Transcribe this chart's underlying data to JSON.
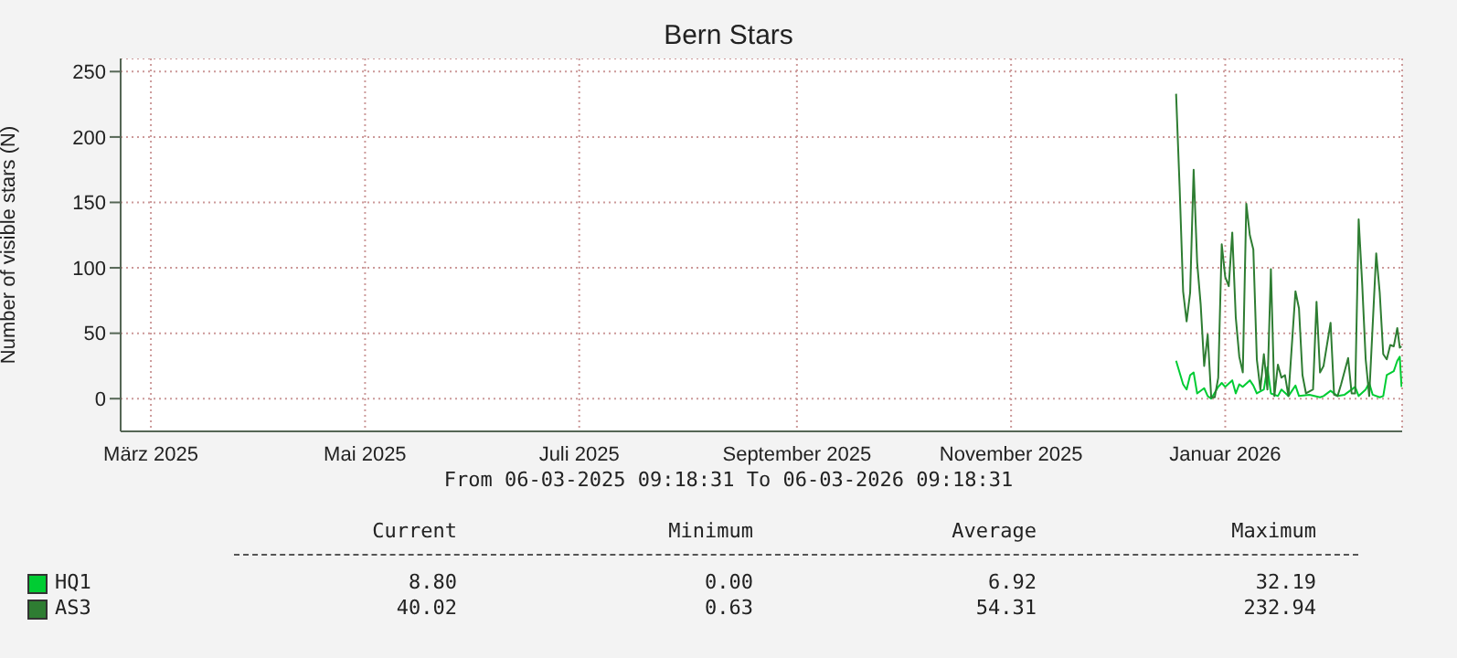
{
  "chart_data": {
    "type": "line",
    "title": "Bern Stars",
    "ylabel": "Number of visible stars (N)",
    "xlim": [
      "2025-03-06T09:18",
      "2026-03-06T09:18"
    ],
    "xticks": [
      {
        "value": "2025-03-15",
        "label": "März 2025"
      },
      {
        "value": "2025-05-15",
        "label": "Mai 2025"
      },
      {
        "value": "2025-07-15",
        "label": "Juli 2025"
      },
      {
        "value": "2025-09-15",
        "label": "September 2025"
      },
      {
        "value": "2025-11-15",
        "label": "November 2025"
      },
      {
        "value": "2026-01-15",
        "label": "Januar 2026"
      }
    ],
    "ylim": [
      -25,
      260
    ],
    "yticks": [
      0,
      50,
      100,
      150,
      200,
      250
    ],
    "grid": true,
    "legend": "bottom",
    "marker": "none",
    "line_style": "solid",
    "series": [
      {
        "name": "HQ1",
        "color": "#00cc33",
        "x": [
          "2026-01-01",
          "2026-01-03",
          "2026-01-04",
          "2026-01-05",
          "2026-01-06",
          "2026-01-07",
          "2026-01-09",
          "2026-01-10",
          "2026-01-11",
          "2026-01-13",
          "2026-01-14",
          "2026-01-15",
          "2026-01-17",
          "2026-01-18",
          "2026-01-19",
          "2026-01-20",
          "2026-01-22",
          "2026-01-23",
          "2026-01-24",
          "2026-01-26",
          "2026-01-27",
          "2026-01-28",
          "2026-01-30",
          "2026-01-31",
          "2026-02-02",
          "2026-02-04",
          "2026-02-05",
          "2026-02-08",
          "2026-02-11",
          "2026-02-12",
          "2026-02-14",
          "2026-02-16",
          "2026-02-18",
          "2026-02-21",
          "2026-02-22",
          "2026-02-24",
          "2026-02-25",
          "2026-02-26",
          "2026-02-28",
          "2026-03-01",
          "2026-03-02",
          "2026-03-04",
          "2026-03-05",
          "2026-03-05T17:00",
          "2026-03-06T05:00"
        ],
        "values": [
          29,
          11,
          7,
          18,
          20,
          4,
          8,
          2,
          0,
          9,
          12,
          9,
          14,
          4,
          11,
          9,
          14,
          10,
          4,
          7,
          24,
          4,
          2,
          7,
          2,
          10,
          2,
          3,
          1,
          2,
          6,
          2,
          3,
          9,
          2,
          7,
          12,
          3,
          1,
          2,
          18,
          21,
          29,
          32,
          9
        ]
      },
      {
        "name": "AS3",
        "color": "#2e7d32",
        "x": [
          "2026-01-01",
          "2026-01-02",
          "2026-01-03",
          "2026-01-04",
          "2026-01-05",
          "2026-01-06",
          "2026-01-07",
          "2026-01-08",
          "2026-01-09",
          "2026-01-10",
          "2026-01-11",
          "2026-01-12",
          "2026-01-13",
          "2026-01-14",
          "2026-01-15",
          "2026-01-16",
          "2026-01-17",
          "2026-01-18",
          "2026-01-19",
          "2026-01-20",
          "2026-01-21",
          "2026-01-22",
          "2026-01-23",
          "2026-01-24",
          "2026-01-25",
          "2026-01-26",
          "2026-01-27",
          "2026-01-28",
          "2026-01-29",
          "2026-01-30",
          "2026-01-31",
          "2026-02-01",
          "2026-02-02",
          "2026-02-04",
          "2026-02-05",
          "2026-02-06",
          "2026-02-07",
          "2026-02-09",
          "2026-02-10",
          "2026-02-11",
          "2026-02-12",
          "2026-02-14",
          "2026-02-15",
          "2026-02-16",
          "2026-02-17",
          "2026-02-19",
          "2026-02-20",
          "2026-02-21",
          "2026-02-22",
          "2026-02-23",
          "2026-02-24",
          "2026-02-25",
          "2026-02-27",
          "2026-02-28",
          "2026-03-01",
          "2026-03-02",
          "2026-03-03",
          "2026-03-04",
          "2026-03-05",
          "2026-03-05T17:00",
          "2026-03-06T05:00"
        ],
        "values": [
          233,
          162,
          82,
          59,
          81,
          175,
          104,
          72,
          25,
          49,
          1,
          1,
          16,
          118,
          93,
          86,
          127,
          62,
          32,
          20,
          149,
          125,
          114,
          30,
          7,
          34,
          7,
          99,
          2,
          26,
          16,
          18,
          2,
          82,
          69,
          18,
          4,
          7,
          74,
          20,
          25,
          58,
          3,
          2,
          11,
          31,
          4,
          4,
          137,
          88,
          30,
          2,
          111,
          81,
          34,
          30,
          41,
          40,
          54,
          39,
          40
        ]
      }
    ],
    "annotations": [
      "From 06-03-2025 09:18:31 To 06-03-2026 09:18:31",
      "Current",
      "Minimum",
      "Average",
      "Maximum",
      "8.80",
      "0.00",
      "6.92",
      "32.19",
      "40.02",
      "0.63",
      "54.31",
      "232.94"
    ]
  }
}
